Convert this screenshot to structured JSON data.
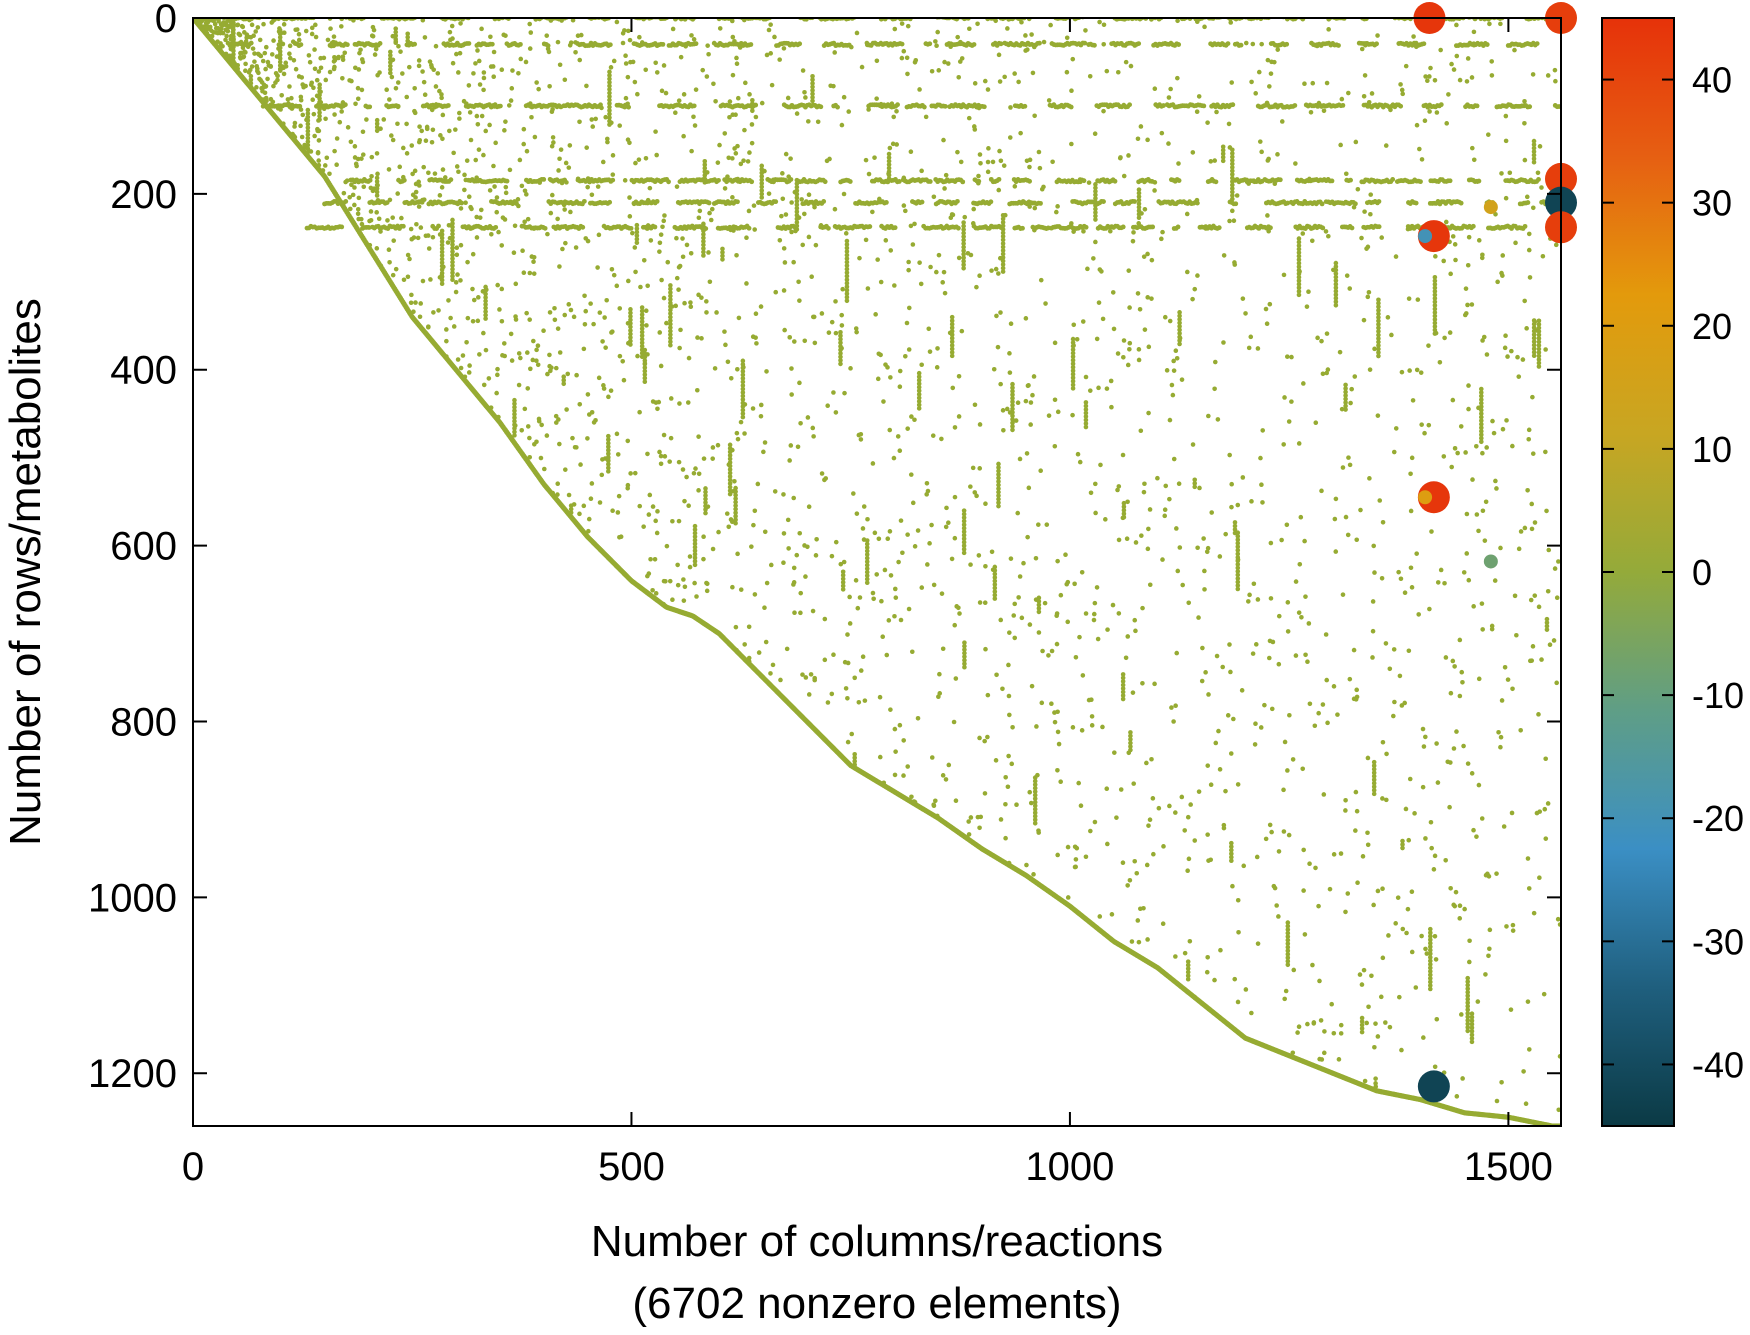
{
  "chart_data": {
    "type": "scatter",
    "subtype": "sparse-matrix-spy-plot",
    "title": "",
    "xlabel": "Number of columns/reactions",
    "xlabel_line2": "(6702 nonzero elements)",
    "ylabel": "Number of rows/metabolites",
    "xlim": [
      0,
      1560
    ],
    "ylim": [
      1260,
      0
    ],
    "y_inverted": true,
    "x_ticks": [
      0,
      500,
      1000,
      1500
    ],
    "y_ticks": [
      0,
      200,
      400,
      600,
      800,
      1000,
      1200
    ],
    "grid": false,
    "legend": "none",
    "nonzero_count": 6702,
    "colorbar": {
      "range": [
        -45,
        45
      ],
      "ticks": [
        40,
        30,
        20,
        10,
        0,
        -10,
        -20,
        -30,
        -40
      ],
      "colors": [
        "#0b3a45",
        "#1f5f7e",
        "#3b8fc4",
        "#5f9e86",
        "#94aa3a",
        "#c8a622",
        "#e39a0c",
        "#e65f12",
        "#e6320a"
      ]
    },
    "base_color": "#96ab32",
    "diagonal_profile": [
      [
        0,
        0
      ],
      [
        50,
        60
      ],
      [
        100,
        120
      ],
      [
        150,
        180
      ],
      [
        200,
        260
      ],
      [
        250,
        340
      ],
      [
        300,
        400
      ],
      [
        350,
        460
      ],
      [
        400,
        530
      ],
      [
        450,
        590
      ],
      [
        500,
        640
      ],
      [
        540,
        670
      ],
      [
        570,
        680
      ],
      [
        600,
        700
      ],
      [
        650,
        750
      ],
      [
        700,
        800
      ],
      [
        750,
        850
      ],
      [
        800,
        880
      ],
      [
        850,
        910
      ],
      [
        900,
        945
      ],
      [
        950,
        975
      ],
      [
        1000,
        1010
      ],
      [
        1050,
        1050
      ],
      [
        1100,
        1080
      ],
      [
        1150,
        1120
      ],
      [
        1200,
        1160
      ],
      [
        1250,
        1180
      ],
      [
        1300,
        1200
      ],
      [
        1350,
        1220
      ],
      [
        1400,
        1230
      ],
      [
        1450,
        1245
      ],
      [
        1500,
        1250
      ],
      [
        1550,
        1260
      ]
    ],
    "horizontal_bands": [
      {
        "row": 0,
        "x_start": 0,
        "x_end": 1560
      },
      {
        "row": 30,
        "x_start": 40,
        "x_end": 1560
      },
      {
        "row": 100,
        "x_start": 80,
        "x_end": 1560
      },
      {
        "row": 185,
        "x_start": 180,
        "x_end": 1560
      },
      {
        "row": 210,
        "x_start": 150,
        "x_end": 1560
      },
      {
        "row": 238,
        "x_start": 130,
        "x_end": 1560
      }
    ],
    "highlighted_entries": [
      {
        "x": 1410,
        "y": 0,
        "value": 44
      },
      {
        "x": 1560,
        "y": 0,
        "value": 42
      },
      {
        "x": 1560,
        "y": 183,
        "value": 42
      },
      {
        "x": 1560,
        "y": 210,
        "value": -42
      },
      {
        "x": 1560,
        "y": 238,
        "value": 42
      },
      {
        "x": 1415,
        "y": 248,
        "value": 44
      },
      {
        "x": 1405,
        "y": 248,
        "value": -20
      },
      {
        "x": 1415,
        "y": 545,
        "value": 44
      },
      {
        "x": 1405,
        "y": 545,
        "value": 20
      },
      {
        "x": 1480,
        "y": 215,
        "value": 15
      },
      {
        "x": 1480,
        "y": 618,
        "value": -8
      },
      {
        "x": 1415,
        "y": 1215,
        "value": -42
      }
    ]
  }
}
